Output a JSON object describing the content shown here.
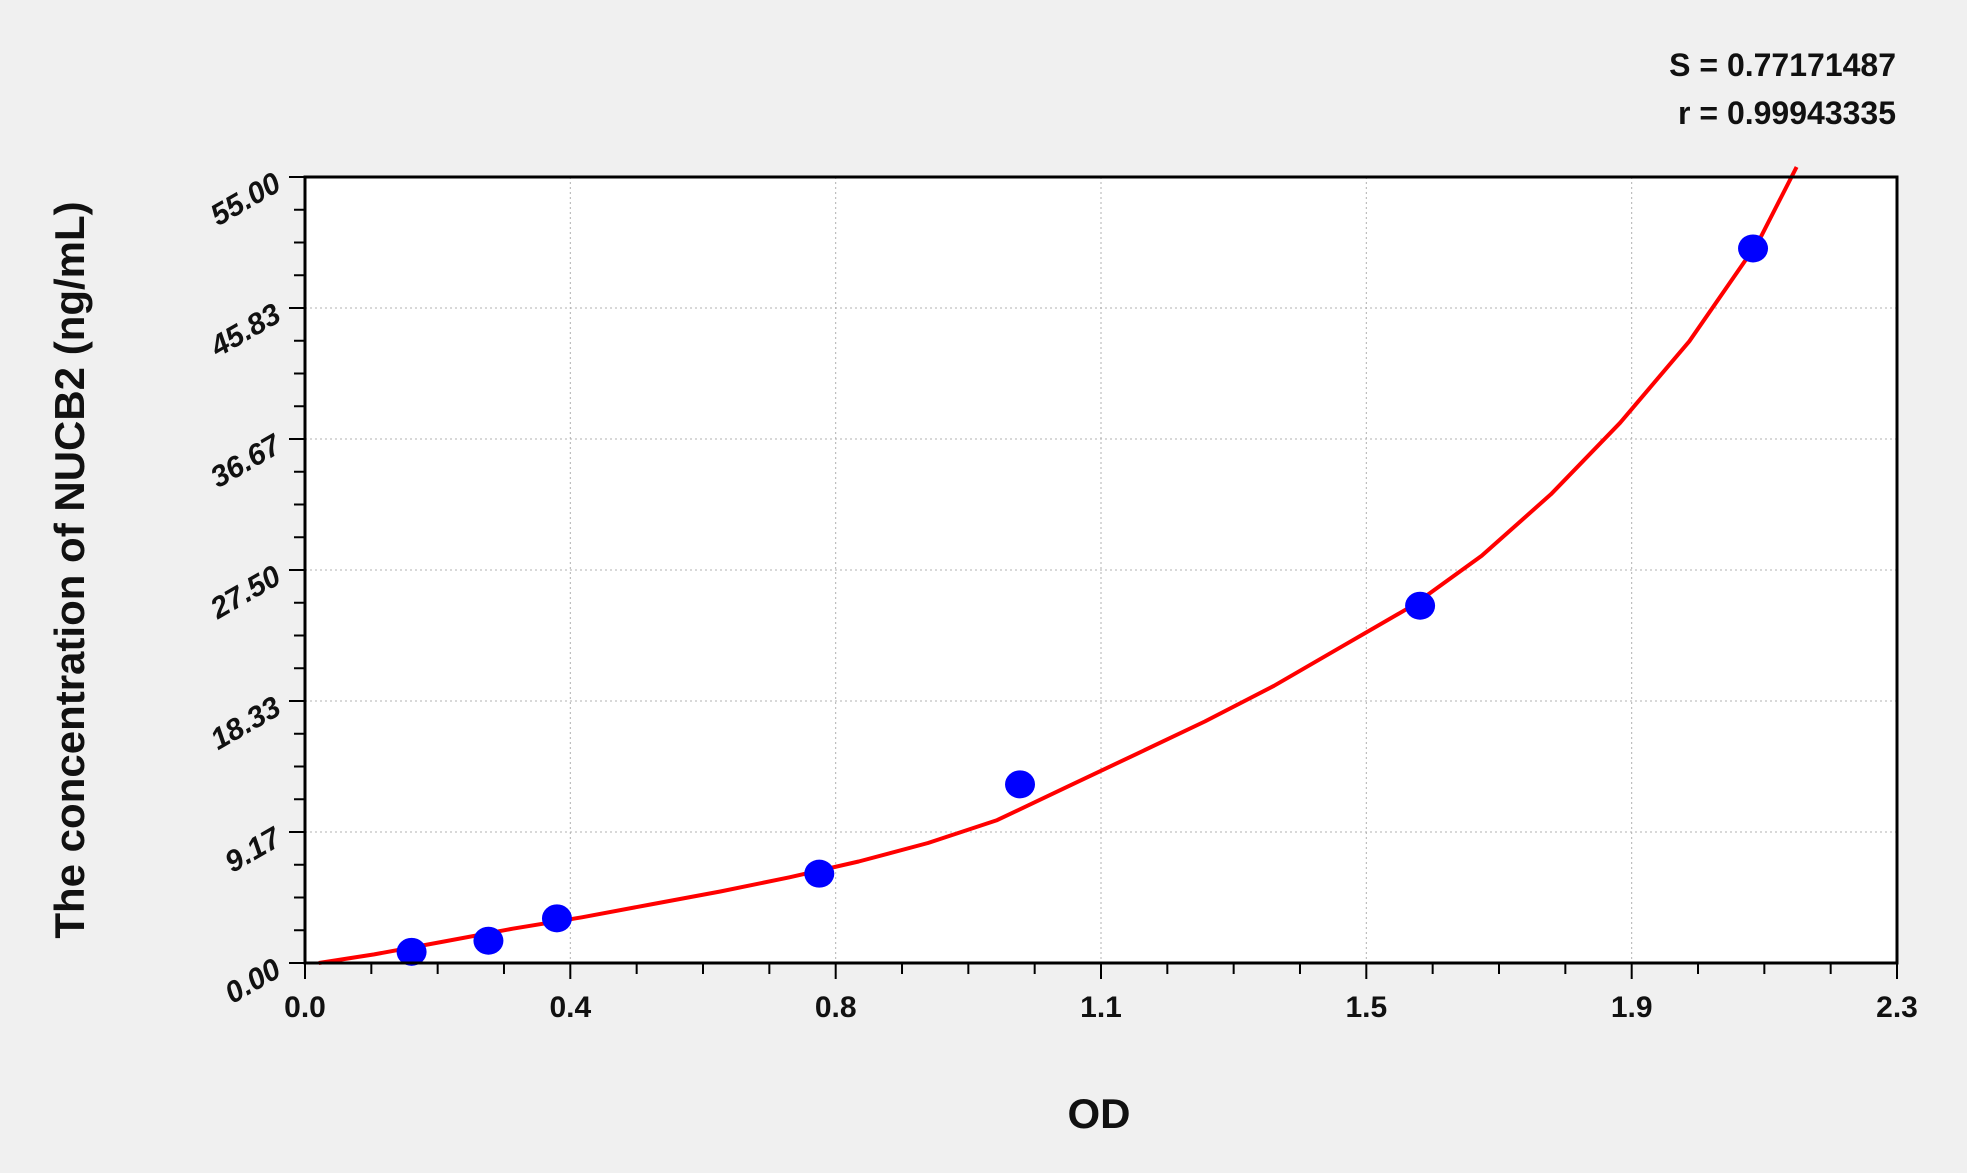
{
  "chart_data": {
    "type": "scatter",
    "xlabel": "OD",
    "ylabel": "The concentration of NUCB2 (ng/mL)",
    "xlim": [
      0,
      2.3
    ],
    "ylim": [
      0,
      55
    ],
    "x_ticks": [
      0,
      0.3833,
      0.7667,
      1.15,
      1.5333,
      1.9167,
      2.3
    ],
    "x_tick_labels": [
      "0.0",
      "0.4",
      "0.8",
      "1.1",
      "1.5",
      "1.9",
      "2.3"
    ],
    "y_ticks": [
      0,
      9.1667,
      18.3333,
      27.5,
      36.6667,
      45.8333,
      55
    ],
    "y_tick_labels": [
      "0.00",
      "9.17",
      "18.33",
      "27.50",
      "36.67",
      "45.83",
      "55.00"
    ],
    "grid": true,
    "annotations": [
      "S = 0.77171487",
      "r = 0.99943335"
    ],
    "series": [
      {
        "type": "scatter",
        "color": "#0000ff",
        "x": [
          0.154,
          0.265,
          0.364,
          0.743,
          1.033,
          1.611,
          2.092
        ],
        "y": [
          0.78,
          1.56,
          3.125,
          6.25,
          12.5,
          25,
          50
        ]
      },
      {
        "type": "line",
        "color": "#ff0000",
        "x": [
          0.02,
          0.1,
          0.2,
          0.3,
          0.4,
          0.5,
          0.6,
          0.7,
          0.8,
          0.9,
          1.0,
          1.1,
          1.2,
          1.3,
          1.4,
          1.5,
          1.6,
          1.7,
          1.8,
          1.9,
          2.0,
          2.1,
          2.155
        ],
        "y": [
          0,
          0.6,
          1.5,
          2.4,
          3.2,
          4.1,
          5.0,
          6.0,
          7.1,
          8.4,
          10.0,
          12.3,
          14.6,
          16.9,
          19.4,
          22.2,
          25.0,
          28.5,
          32.8,
          37.8,
          43.5,
          50.5,
          55.7
        ]
      }
    ]
  }
}
